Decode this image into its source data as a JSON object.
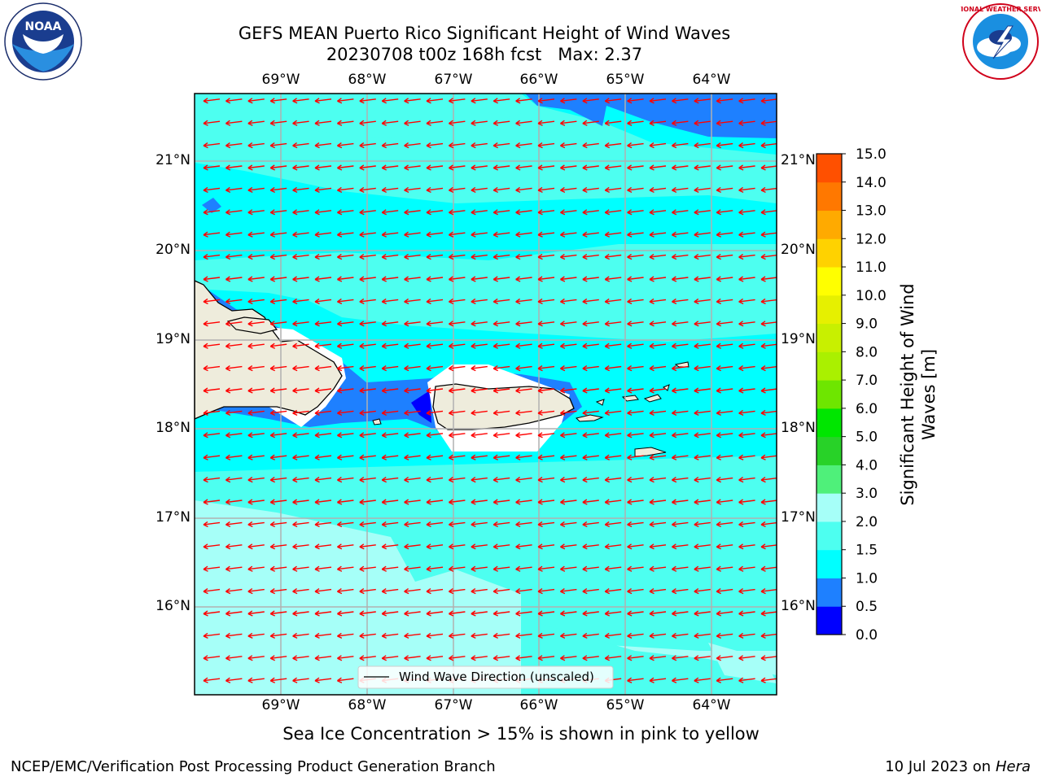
{
  "header": {
    "title_line1": "GEFS MEAN Puerto Rico Significant Height of Wind Waves",
    "title_line2": "20230708 t00z 168h fcst   Max: 2.37"
  },
  "logos": {
    "left": {
      "text": "NOAA",
      "ring_text": "NATIONAL OCEANIC AND ATMOSPHERIC ADMINISTRATION · U.S. DEPARTMENT OF COMMERCE"
    },
    "right": {
      "text": "NATIONAL WEATHER SERVICE"
    }
  },
  "map": {
    "lon_labels": [
      "69°W",
      "68°W",
      "67°W",
      "66°W",
      "65°W",
      "64°W"
    ],
    "lat_labels": [
      "21°N",
      "20°N",
      "19°N",
      "18°N",
      "17°N",
      "16°N"
    ],
    "legend_label": "Wind Wave Direction (unscaled)",
    "wind_wave_direction": "from east-northeast (vectors pointing west-southwest)",
    "colors": {
      "ocean_main": "#00ffff",
      "ocean_2_25": "#4dfff0",
      "ocean_light": "#a6fff8",
      "low_wave": "#1e80ff",
      "very_low": "#0000ff",
      "land": "#eeecdc",
      "arrow": "#ff0000"
    }
  },
  "colorbar": {
    "label": "Significant Height of Wind Waves [m]",
    "label_line1": "Significant Height of Wind",
    "label_line2": "Waves [m]",
    "ticks": [
      "15.0",
      "14.0",
      "13.0",
      "12.0",
      "11.0",
      "10.0",
      "9.0",
      "8.0",
      "7.0",
      "6.0",
      "5.0",
      "4.0",
      "3.0",
      "2.0",
      "1.5",
      "1.0",
      "0.5",
      "0.0"
    ],
    "colors_bottom_to_top": [
      "#0000ff",
      "#1e80ff",
      "#00ffff",
      "#4dfff0",
      "#a6fff8",
      "#4ff07a",
      "#28d228",
      "#00e600",
      "#6ee600",
      "#aaf000",
      "#c8f000",
      "#e6f000",
      "#ffff00",
      "#ffd200",
      "#ffaa00",
      "#ff7800",
      "#ff5000",
      "#ff2800",
      "#ff0000"
    ]
  },
  "note": "Sea Ice Concentration > 15% is shown in pink to yellow",
  "footer": {
    "left": "NCEP/EMC/Verification Post Processing Product Generation Branch",
    "right_prefix": "10 Jul 2023 on ",
    "right_italic": "Hera"
  }
}
